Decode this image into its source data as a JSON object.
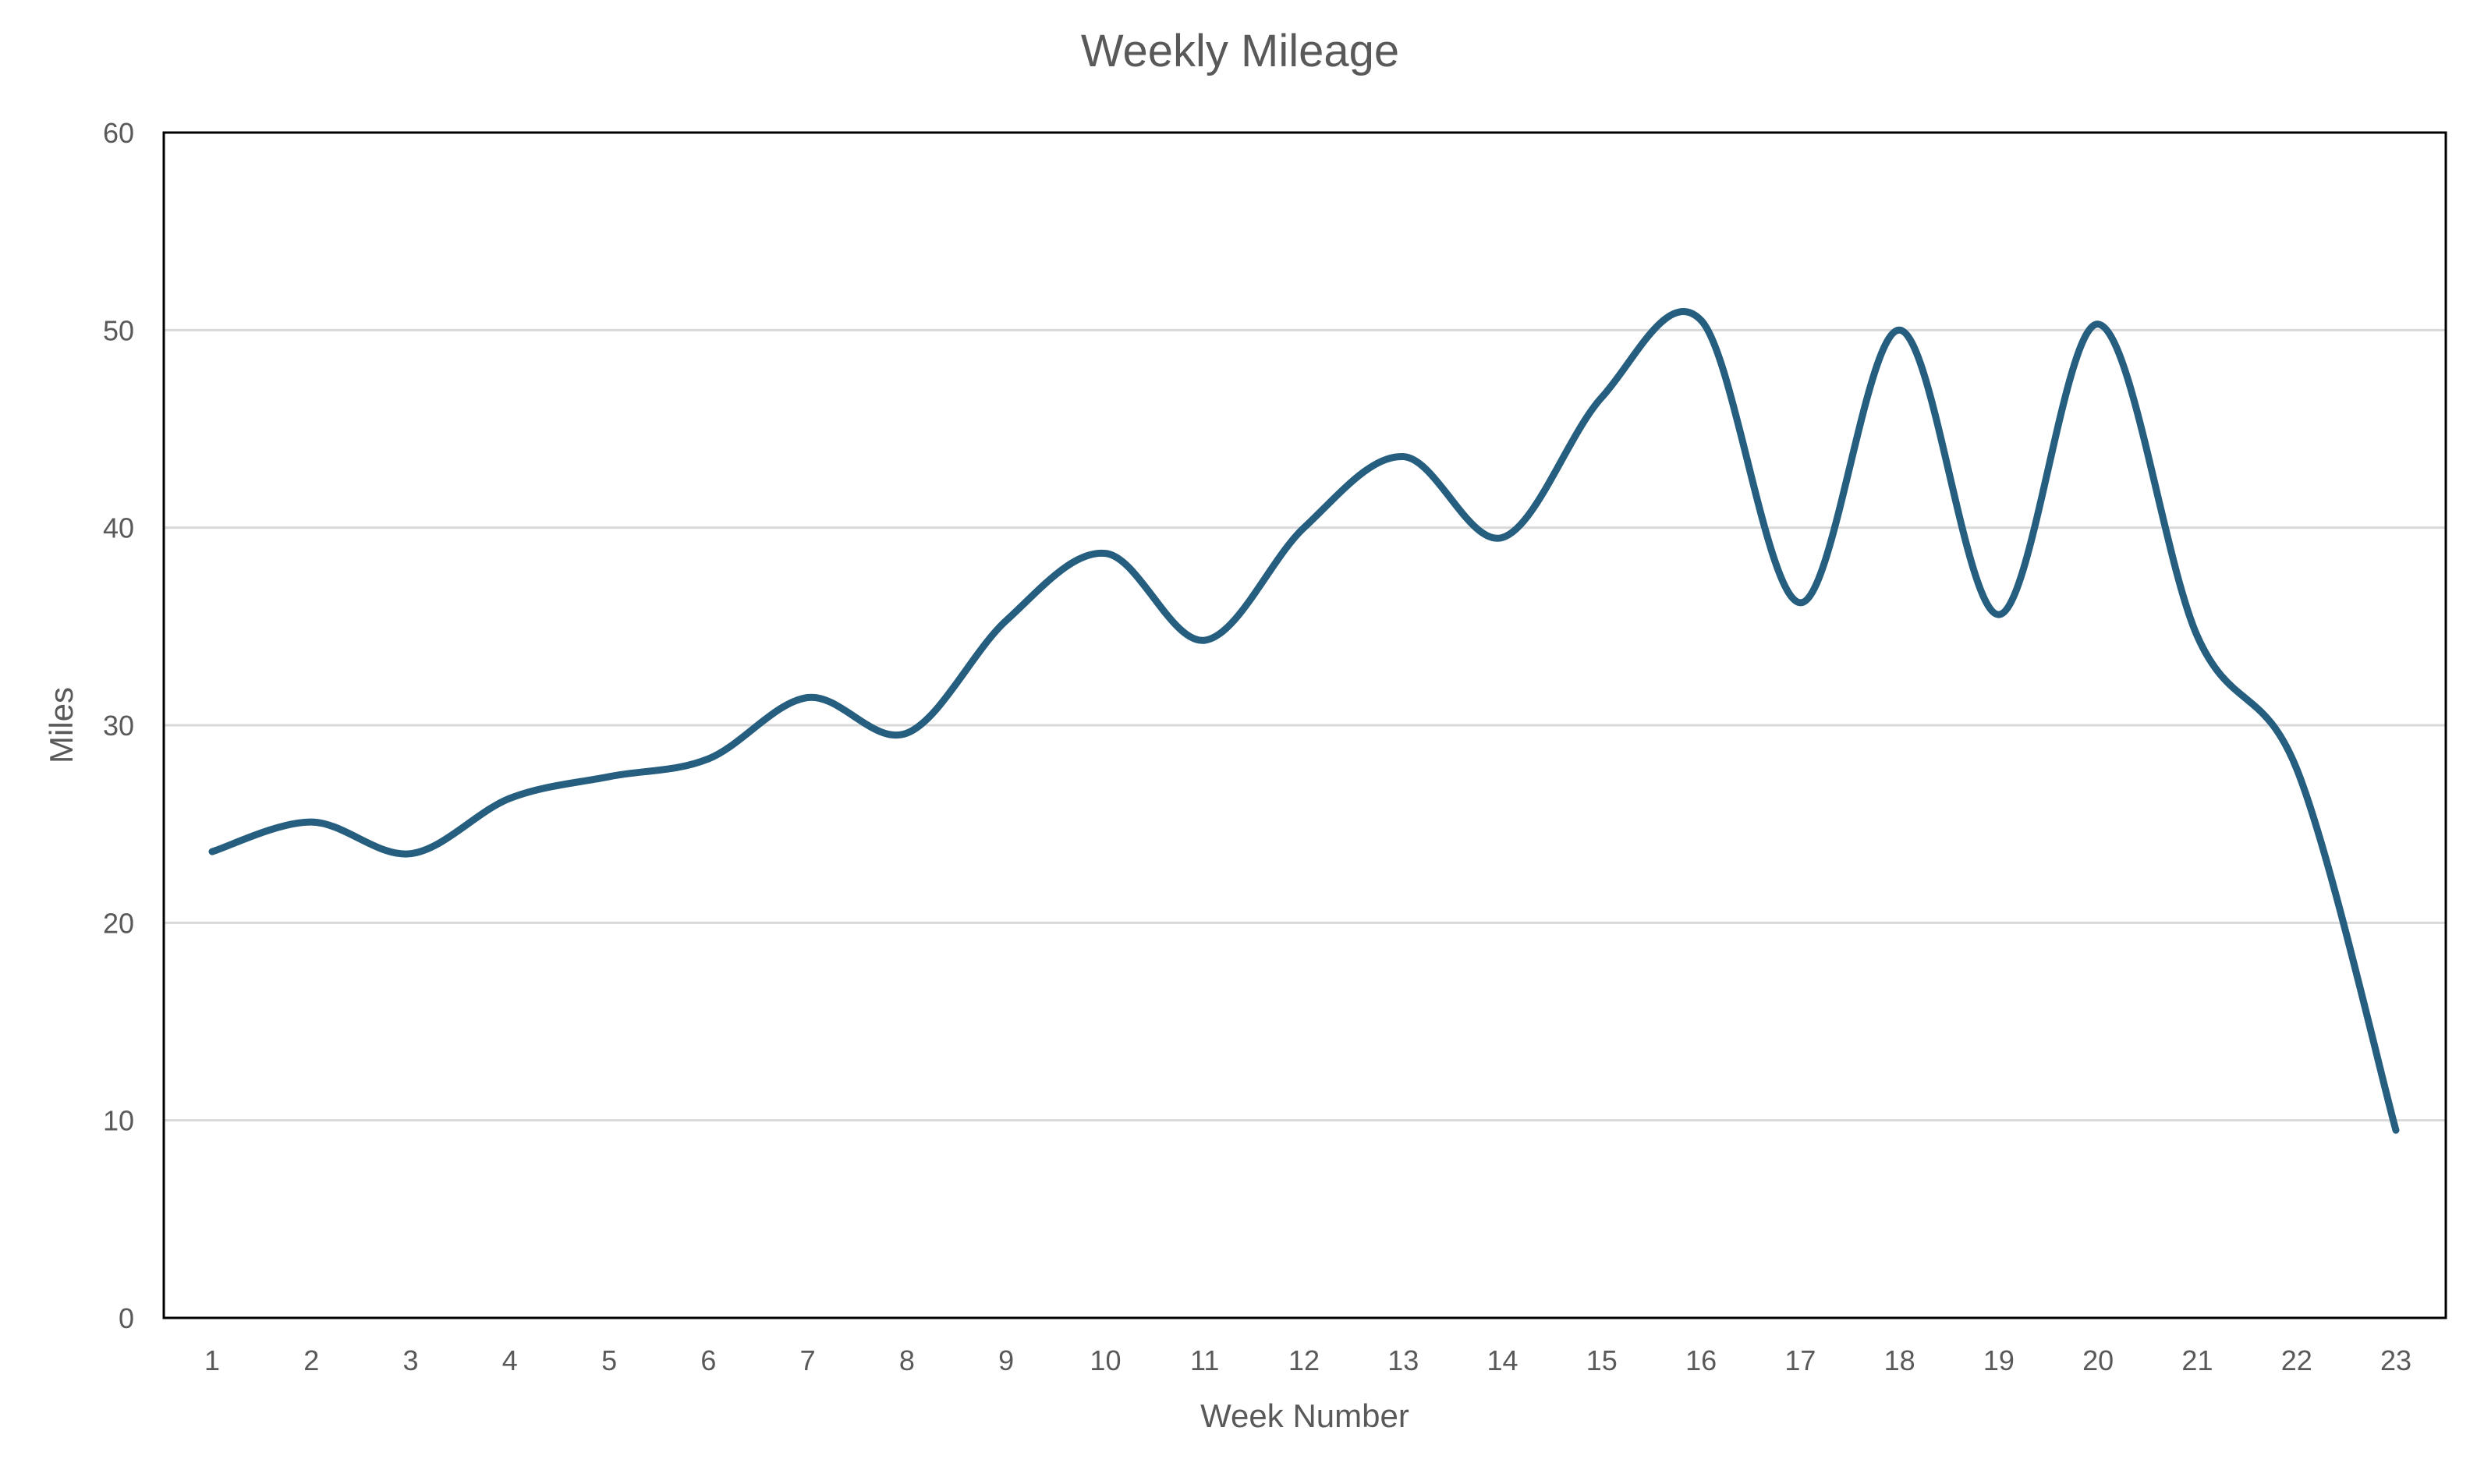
{
  "chart_data": {
    "type": "line",
    "title": "Weekly Mileage",
    "xlabel": "Week Number",
    "ylabel": "Miles",
    "categories": [
      "1",
      "2",
      "3",
      "4",
      "5",
      "6",
      "7",
      "8",
      "9",
      "10",
      "11",
      "12",
      "13",
      "14",
      "15",
      "16",
      "17",
      "18",
      "19",
      "20",
      "21",
      "22",
      "23"
    ],
    "series": [
      {
        "values": [
          23.6,
          25.1,
          23.5,
          26.3,
          27.4,
          28.3,
          31.4,
          29.6,
          35.3,
          38.7,
          34.3,
          40.0,
          43.6,
          39.5,
          46.6,
          50.5,
          36.2,
          50.0,
          35.6,
          50.3,
          34.5,
          27.8,
          9.5
        ],
        "color": "#255E7E"
      }
    ],
    "ylim": [
      0,
      60
    ],
    "yticks": [
      0,
      10,
      20,
      30,
      40,
      50,
      60
    ],
    "grid": true,
    "smooth": true,
    "legend": "none"
  }
}
